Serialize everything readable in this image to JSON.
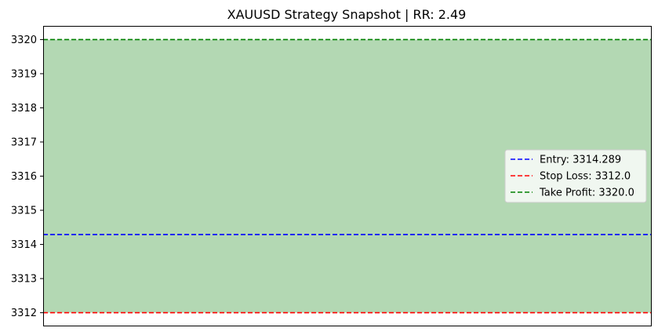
{
  "chart_data": {
    "type": "line",
    "title": "XAUUSD Strategy Snapshot | RR: 2.49",
    "xlabel": "",
    "ylabel": "",
    "ylim": [
      3311.6,
      3320.4
    ],
    "yticks": [
      3312,
      3313,
      3314,
      3315,
      3316,
      3317,
      3318,
      3319,
      3320
    ],
    "grid": false,
    "legend_position": "center-right",
    "shaded_band": {
      "from": 3312.0,
      "to": 3320.0,
      "color": "#b3d8b3"
    },
    "series": [
      {
        "name": "Entry: 3314.289",
        "value": 3314.289,
        "color": "#0000ff",
        "style": "dashed"
      },
      {
        "name": "Stop Loss: 3312.0",
        "value": 3312.0,
        "color": "#ff0000",
        "style": "dashed"
      },
      {
        "name": "Take Profit: 3320.0",
        "value": 3320.0,
        "color": "#008000",
        "style": "dashed"
      }
    ]
  }
}
